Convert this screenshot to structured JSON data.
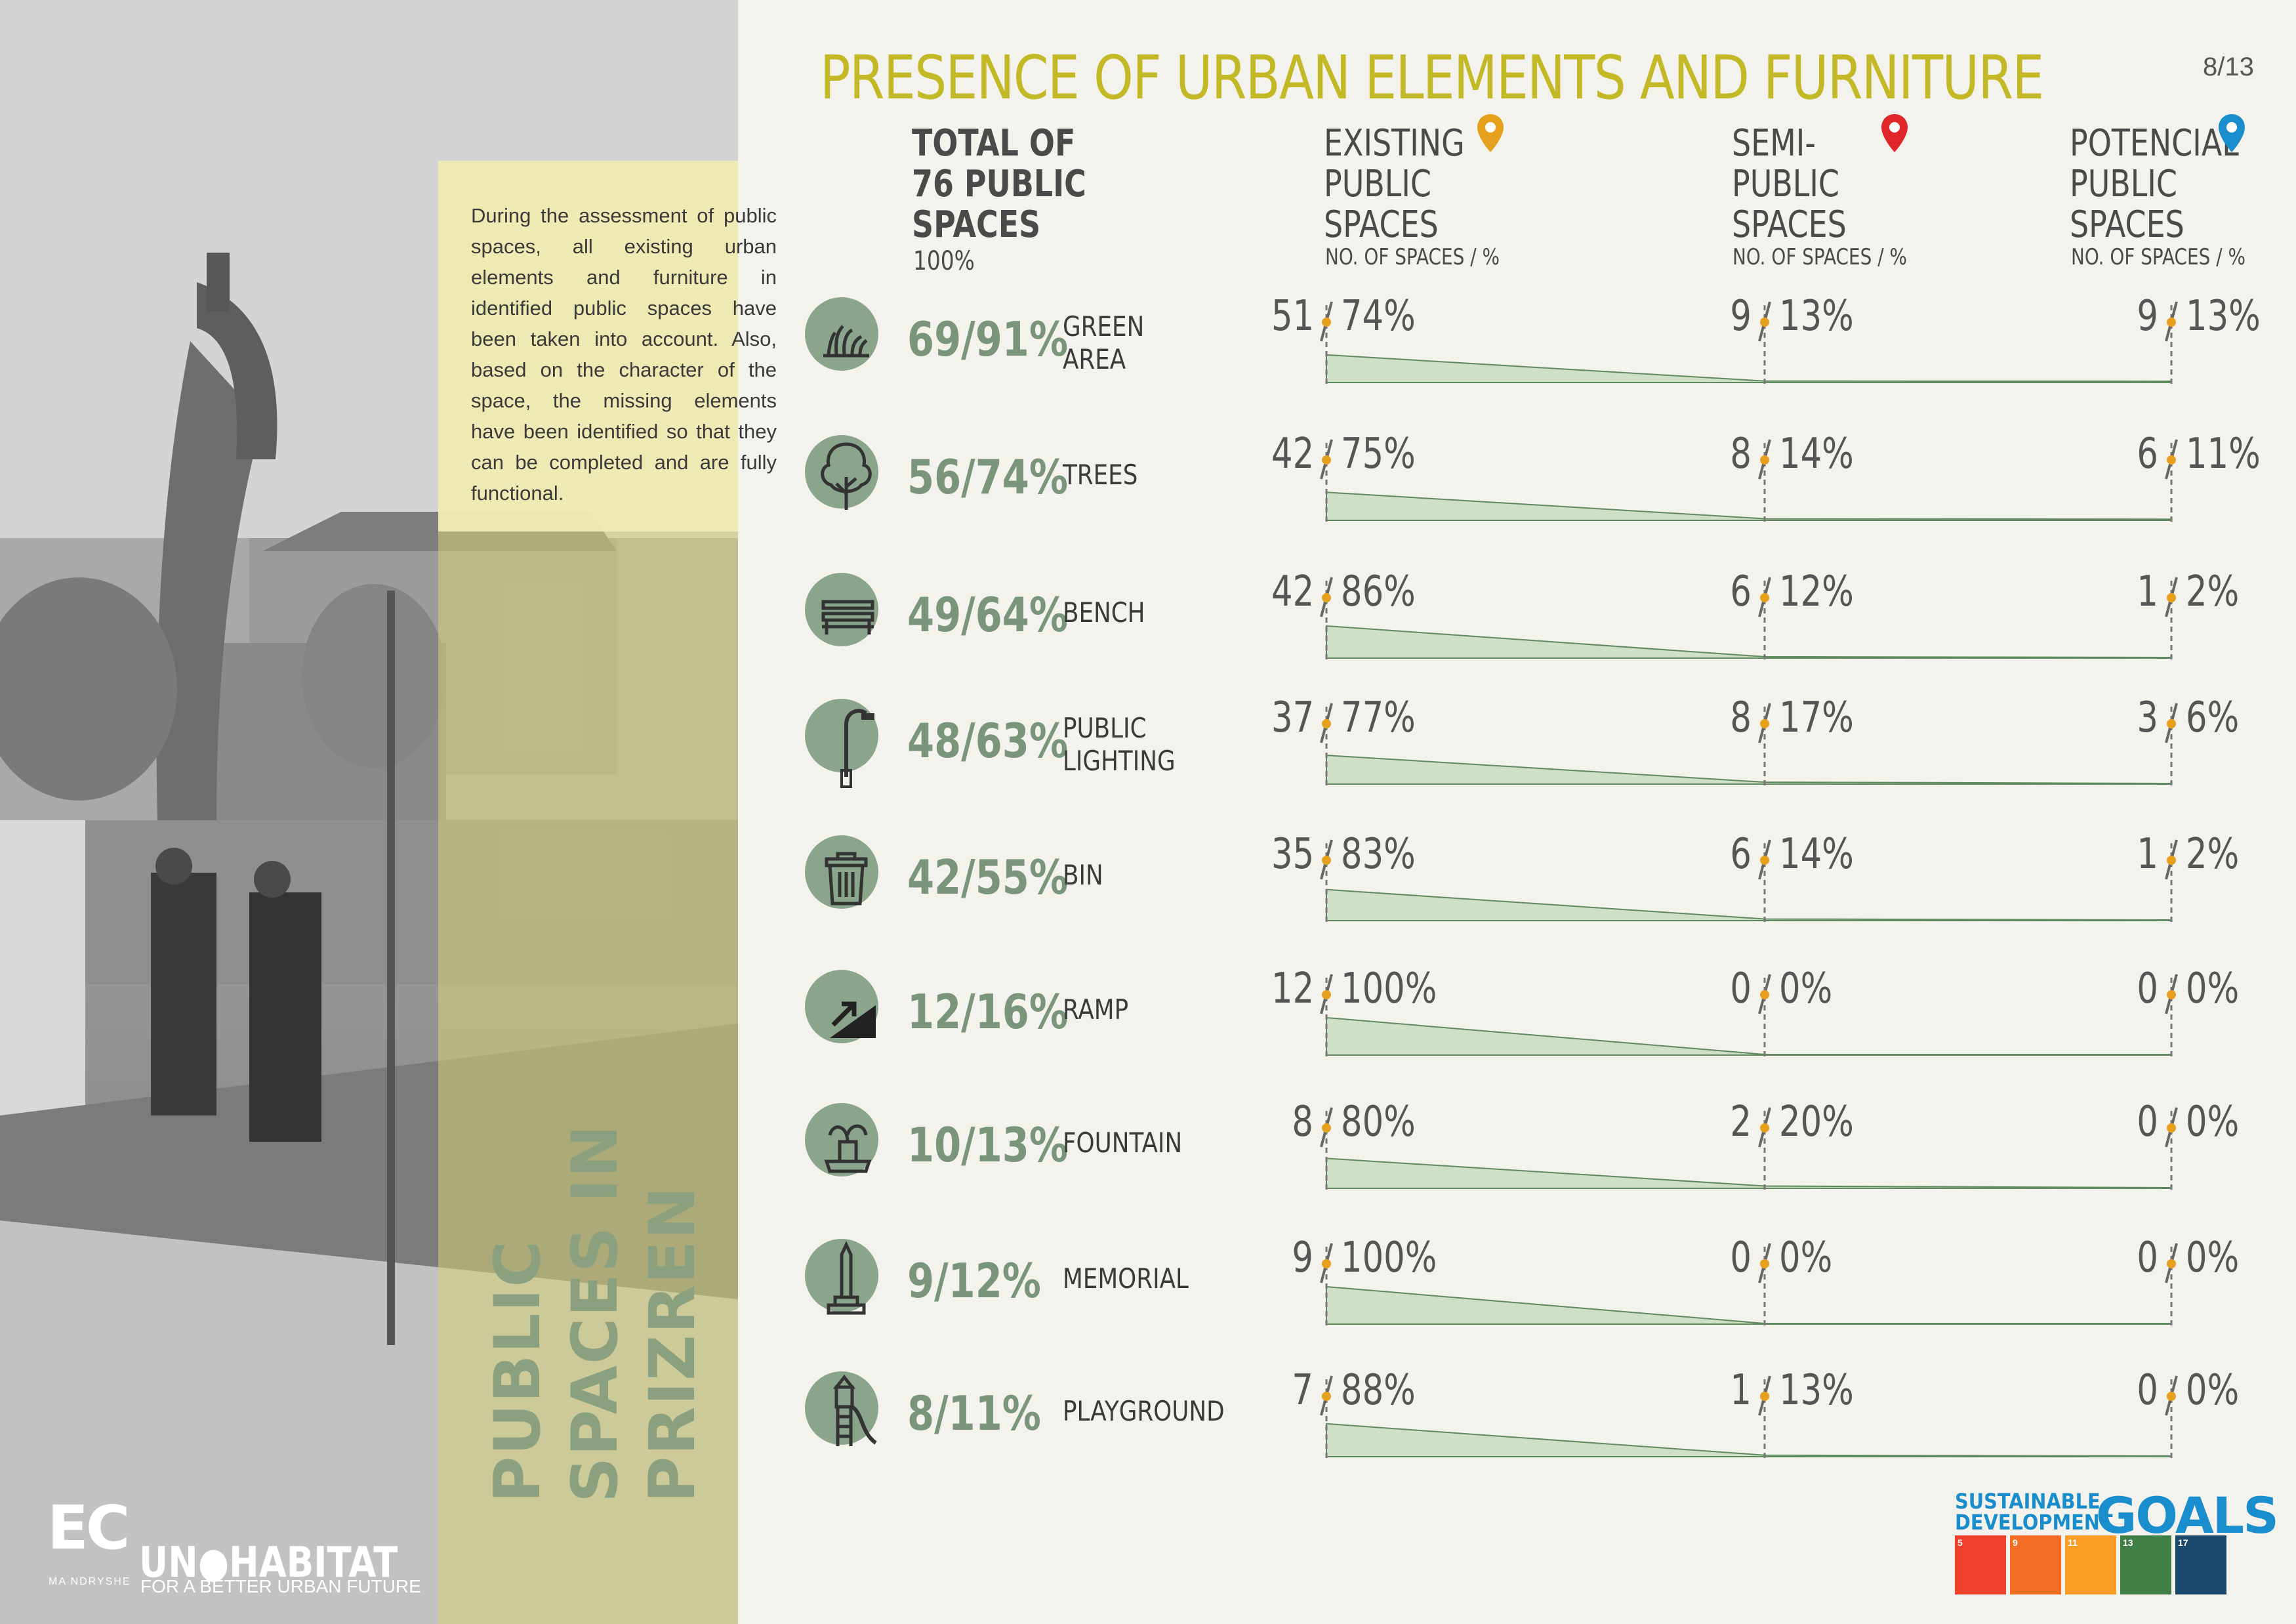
{
  "header": {
    "title": "PRESENCE OF URBAN ELEMENTS AND FURNITURE",
    "page": "8/13"
  },
  "sidebar": {
    "intro": "During the assessment of public spaces, all existing urban elements and furniture in identified public spaces have been taken into account. Also, based on the character of the space, the missing elements have been identified so that they can be completed and are fully functional.",
    "vertical_title_lines": [
      "PUBLIC",
      "SPACES IN",
      "PRIZREN"
    ]
  },
  "columns": {
    "total": {
      "lines": [
        "TOTAL OF",
        "76 PUBLIC",
        "SPACES"
      ],
      "sub": "100%"
    },
    "existing": {
      "lines": [
        "EXISTING",
        "PUBLIC",
        "SPACES"
      ],
      "sub": "NO. OF SPACES / %",
      "pin_color": "#e6a01e"
    },
    "semi": {
      "lines": [
        "SEMI-",
        "PUBLIC",
        "SPACES"
      ],
      "sub": "NO. OF SPACES / %",
      "pin_color": "#e0262b"
    },
    "potencial": {
      "lines": [
        "POTENCIAL",
        "PUBLIC",
        "SPACES"
      ],
      "sub": "NO. OF SPACES / %",
      "pin_color": "#1a8dcc"
    }
  },
  "chart_data": {
    "type": "table",
    "total_spaces": 76,
    "rows": [
      {
        "element": "GREEN AREA",
        "label_lines": [
          "GREEN",
          "AREA"
        ],
        "icon": "grass-icon",
        "total": "69/91%",
        "existing": {
          "count": "51",
          "pct": "74%",
          "value": 74
        },
        "semi": {
          "count": "9",
          "pct": "13%",
          "value": 13
        },
        "potencial": {
          "count": "9",
          "pct": "13%",
          "value": 13
        }
      },
      {
        "element": "TREES",
        "label_lines": [
          "TREES"
        ],
        "icon": "tree-icon",
        "total": "56/74%",
        "existing": {
          "count": "42",
          "pct": "75%",
          "value": 75
        },
        "semi": {
          "count": "8",
          "pct": "14%",
          "value": 14
        },
        "potencial": {
          "count": "6",
          "pct": "11%",
          "value": 11
        }
      },
      {
        "element": "BENCH",
        "label_lines": [
          "BENCH"
        ],
        "icon": "bench-icon",
        "total": "49/64%",
        "existing": {
          "count": "42",
          "pct": "86%",
          "value": 86
        },
        "semi": {
          "count": "6",
          "pct": "12%",
          "value": 12
        },
        "potencial": {
          "count": "1",
          "pct": "2%",
          "value": 2
        }
      },
      {
        "element": "PUBLIC LIGHTING",
        "label_lines": [
          "PUBLIC",
          "LIGHTING"
        ],
        "icon": "streetlamp-icon",
        "total": "48/63%",
        "existing": {
          "count": "37",
          "pct": "77%",
          "value": 77
        },
        "semi": {
          "count": "8",
          "pct": "17%",
          "value": 17
        },
        "potencial": {
          "count": "3",
          "pct": "6%",
          "value": 6
        }
      },
      {
        "element": "BIN",
        "label_lines": [
          "BIN"
        ],
        "icon": "bin-icon",
        "total": "42/55%",
        "existing": {
          "count": "35",
          "pct": "83%",
          "value": 83
        },
        "semi": {
          "count": "6",
          "pct": "14%",
          "value": 14
        },
        "potencial": {
          "count": "1",
          "pct": "2%",
          "value": 2
        }
      },
      {
        "element": "RAMP",
        "label_lines": [
          "RAMP"
        ],
        "icon": "ramp-icon",
        "total": "12/16%",
        "existing": {
          "count": "12",
          "pct": "100%",
          "value": 100
        },
        "semi": {
          "count": "0",
          "pct": "0%",
          "value": 0
        },
        "potencial": {
          "count": "0",
          "pct": "0%",
          "value": 0
        }
      },
      {
        "element": "FOUNTAIN",
        "label_lines": [
          "FOUNTAIN"
        ],
        "icon": "fountain-icon",
        "total": "10/13%",
        "existing": {
          "count": "8",
          "pct": "80%",
          "value": 80
        },
        "semi": {
          "count": "2",
          "pct": "20%",
          "value": 20
        },
        "potencial": {
          "count": "0",
          "pct": "0%",
          "value": 0
        }
      },
      {
        "element": "MEMORIAL",
        "label_lines": [
          "MEMORIAL"
        ],
        "icon": "memorial-icon",
        "total": "9/12%",
        "existing": {
          "count": "9",
          "pct": "100%",
          "value": 100
        },
        "semi": {
          "count": "0",
          "pct": "0%",
          "value": 0
        },
        "potencial": {
          "count": "0",
          "pct": "0%",
          "value": 0
        }
      },
      {
        "element": "PLAYGROUND",
        "label_lines": [
          "PLAYGROUND"
        ],
        "icon": "playground-icon",
        "total": "8/11%",
        "existing": {
          "count": "7",
          "pct": "88%",
          "value": 88
        },
        "semi": {
          "count": "1",
          "pct": "13%",
          "value": 13
        },
        "potencial": {
          "count": "0",
          "pct": "0%",
          "value": 0
        }
      }
    ]
  },
  "footer": {
    "ec_logo": "EC",
    "ec_sub": "MA NDRYSHE",
    "un_logo": "UN●HABITAT",
    "un_sub": "FOR A BETTER URBAN FUTURE",
    "sdg_title_lines": [
      "SUSTAINABLE",
      "DEVELOPMENT"
    ],
    "sdg_goals": "GOALS",
    "sdg_boxes": [
      {
        "num": "5",
        "color": "#ef402b"
      },
      {
        "num": "9",
        "color": "#f36d25"
      },
      {
        "num": "11",
        "color": "#f99d26"
      },
      {
        "num": "13",
        "color": "#3f7e44"
      },
      {
        "num": "17",
        "color": "#19486a"
      }
    ]
  },
  "colors": {
    "accent_green": "#7a957c",
    "area_fill": "#cfe0c7",
    "title_yellow": "#c3b826",
    "dot_orange": "#e6a01e"
  }
}
